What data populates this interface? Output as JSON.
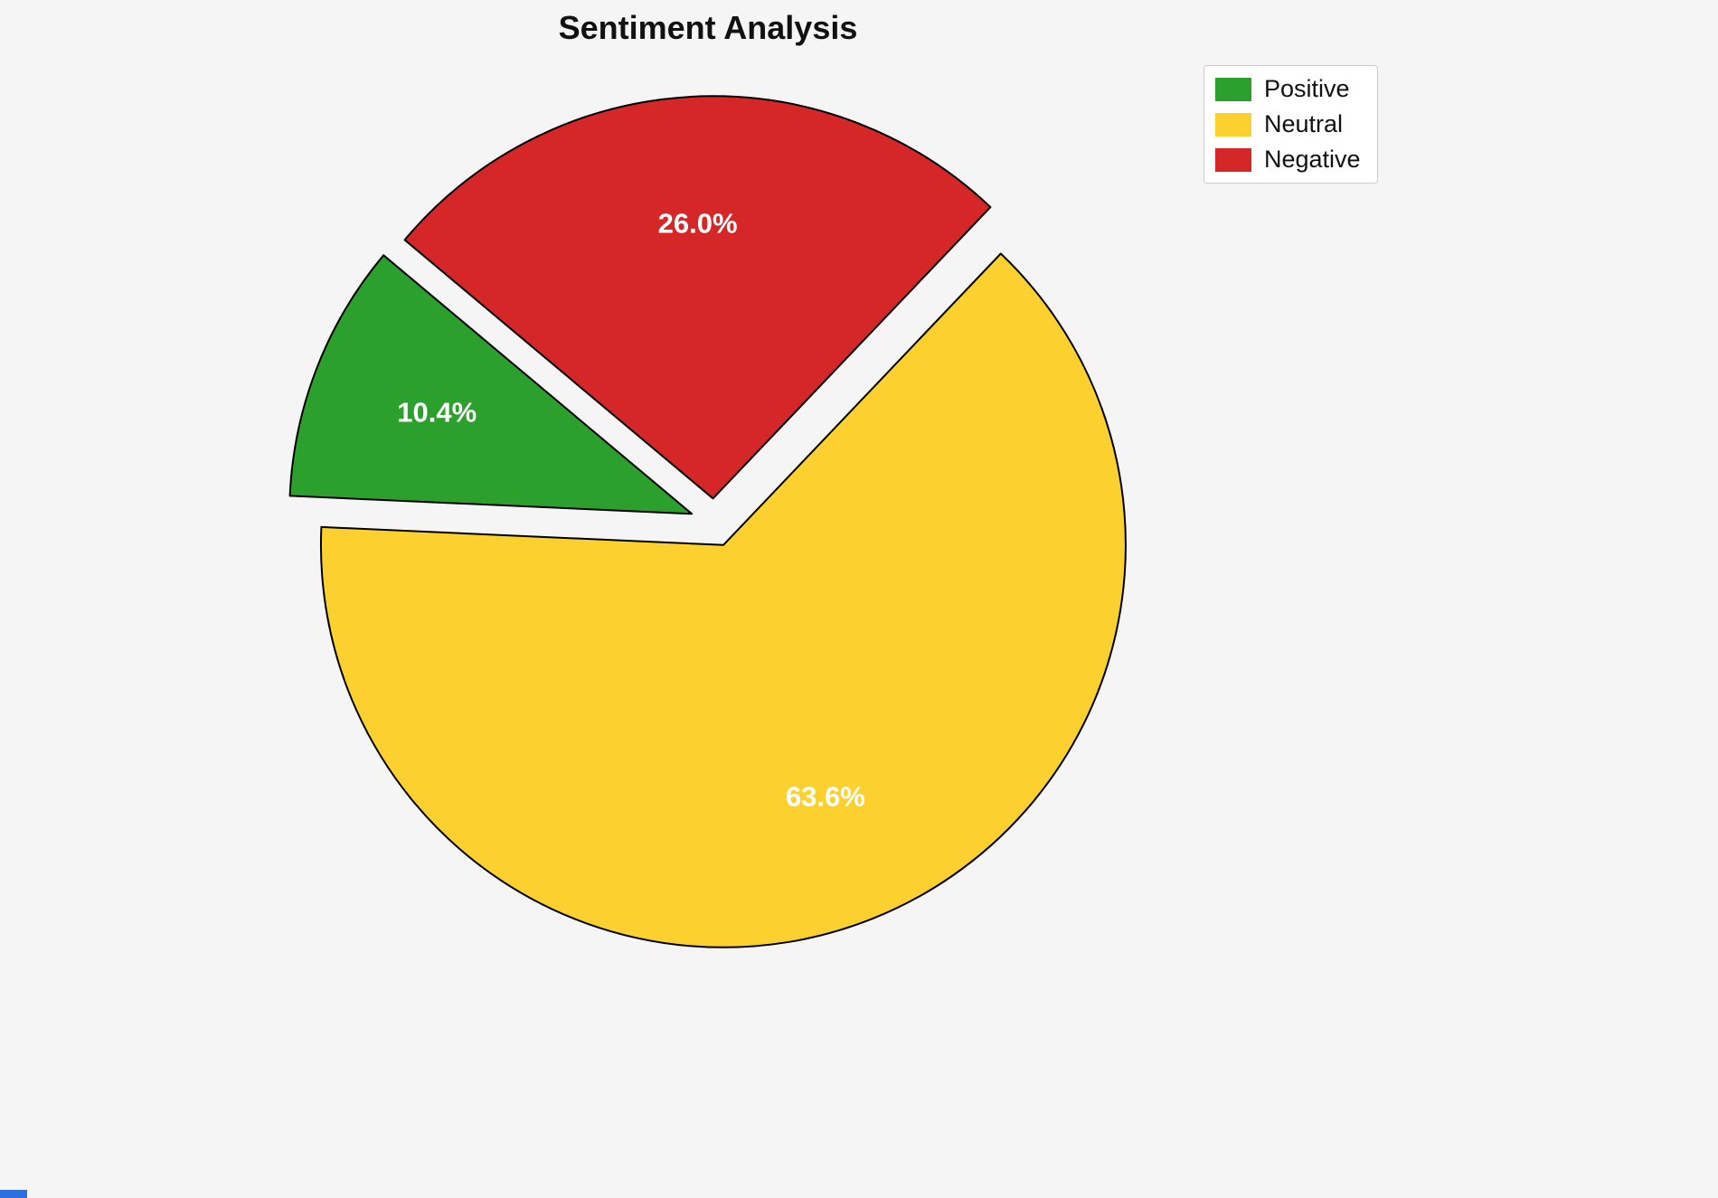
{
  "title": "Sentiment Analysis",
  "background_color": "#f5f5f5",
  "chart_data": {
    "type": "pie",
    "title": "Sentiment Analysis",
    "categories": [
      "Positive",
      "Neutral",
      "Negative"
    ],
    "values": [
      10.4,
      63.6,
      26.0
    ],
    "percent_labels": [
      "10.4%",
      "63.6%",
      "26.0%"
    ],
    "colors": [
      "#2ca02c",
      "#fcd02e",
      "#d62728"
    ],
    "edge_color": "#000000",
    "start_angle": 140,
    "direction": "counterclockwise",
    "explode": 0.06,
    "label_distance": 0.68,
    "legend_position": "upper right",
    "legend": [
      {
        "label": "Positive",
        "color": "#2ca02c"
      },
      {
        "label": "Neutral",
        "color": "#fcd02e"
      },
      {
        "label": "Negative",
        "color": "#d62728"
      }
    ]
  }
}
